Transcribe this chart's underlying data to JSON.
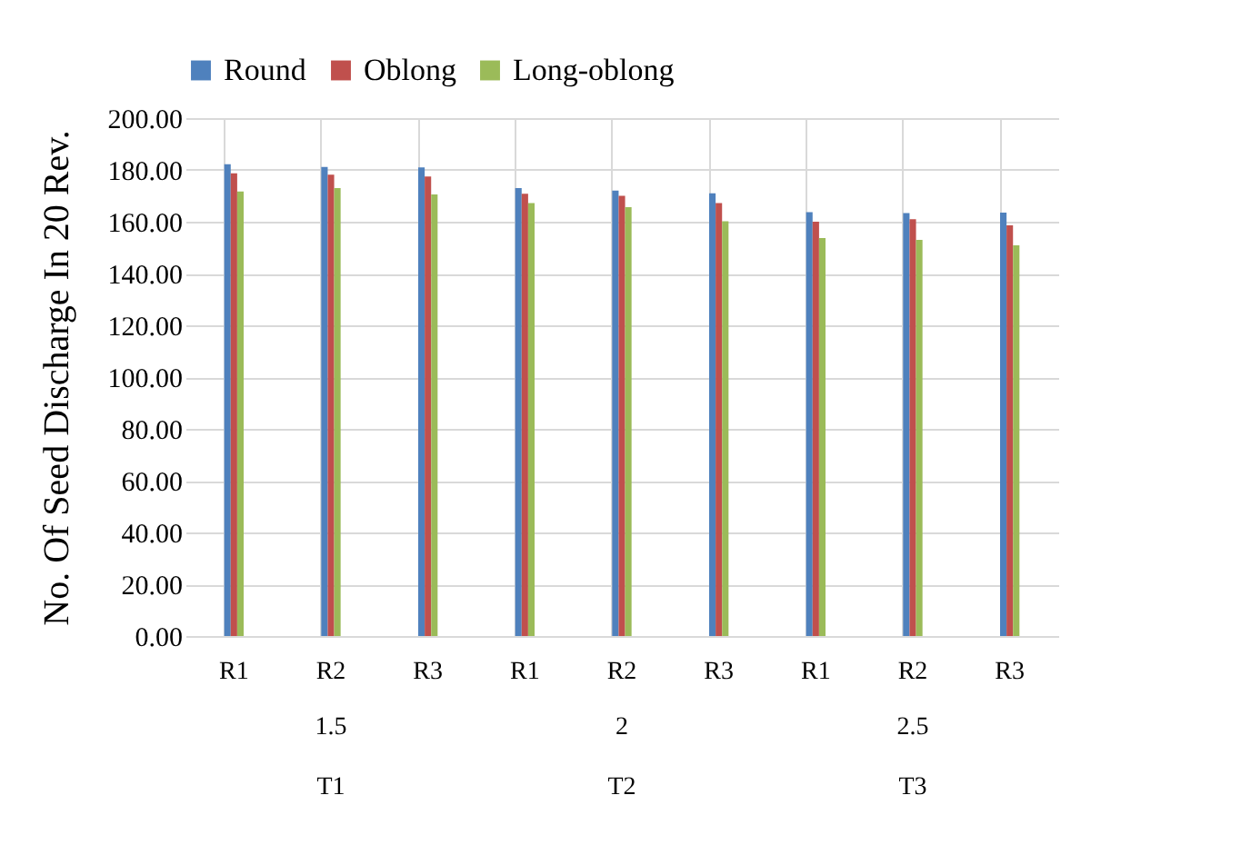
{
  "chart_data": {
    "type": "bar",
    "ylabel": "No. Of Seed Discharge In 20 Rev.",
    "categories": [
      "R1",
      "R2",
      "R3",
      "R1",
      "R2",
      "R3",
      "R1",
      "R2",
      "R3"
    ],
    "series": [
      {
        "name": "Round",
        "color": "#4f81bd",
        "values": [
          182.2,
          181.1,
          181.0,
          173.0,
          172.0,
          171.0,
          163.7,
          163.3,
          163.5
        ]
      },
      {
        "name": "Oblong",
        "color": "#c0504d",
        "values": [
          178.7,
          178.2,
          177.5,
          170.8,
          170.0,
          167.2,
          160.0,
          161.0,
          158.6
        ]
      },
      {
        "name": "Long-oblong",
        "color": "#9bbb59",
        "values": [
          171.7,
          173.0,
          170.5,
          167.2,
          165.6,
          160.2,
          153.7,
          153.0,
          150.9
        ]
      }
    ],
    "annotations": [
      "1.5",
      "T1",
      "2",
      "T2",
      "2.5",
      "T3"
    ],
    "ylim": [
      0,
      200
    ],
    "yticks": [
      {
        "value": 0,
        "label": "0.00"
      },
      {
        "value": 20,
        "label": "20.00"
      },
      {
        "value": 40,
        "label": "40.00"
      },
      {
        "value": 60,
        "label": "60.00"
      },
      {
        "value": 80,
        "label": "80.00"
      },
      {
        "value": 100,
        "label": "100.00"
      },
      {
        "value": 120,
        "label": "120.00"
      },
      {
        "value": 140,
        "label": "140.00"
      },
      {
        "value": 160,
        "label": "160.00"
      },
      {
        "value": 180,
        "label": "180.00"
      },
      {
        "value": 200,
        "label": "200.00"
      }
    ],
    "grid": true,
    "legend": "top"
  }
}
